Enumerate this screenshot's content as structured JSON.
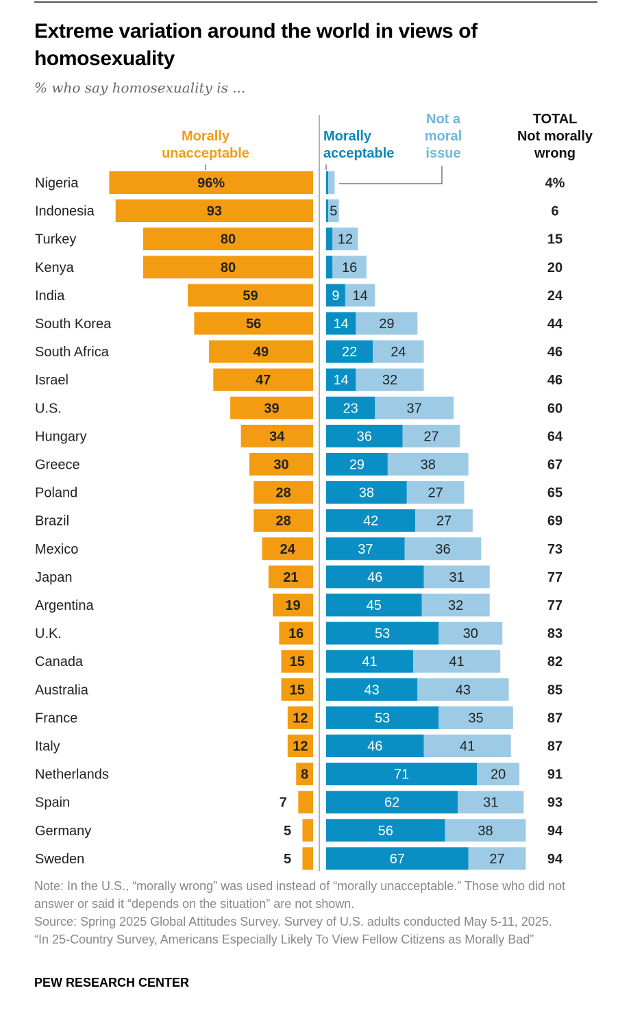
{
  "chart_data": {
    "type": "bar",
    "title": "Extreme variation around the world in views of homosexuality",
    "subtitle": "% who say homosexuality is ...",
    "legend": {
      "unacceptable": "Morally unacceptable",
      "acceptable": "Morally acceptable",
      "not_moral": "Not a moral issue",
      "total": "TOTAL Not morally wrong"
    },
    "legend_placement": "top",
    "colors": {
      "unacceptable": "#f39c12",
      "acceptable": "#0a8fc4",
      "not_moral": "#9dcbe6",
      "divider": "#999999"
    },
    "categories": [
      "Nigeria",
      "Indonesia",
      "Turkey",
      "Kenya",
      "India",
      "South Korea",
      "South Africa",
      "Israel",
      "U.S.",
      "Hungary",
      "Greece",
      "Poland",
      "Brazil",
      "Mexico",
      "Japan",
      "Argentina",
      "U.K.",
      "Canada",
      "Australia",
      "France",
      "Italy",
      "Netherlands",
      "Spain",
      "Germany",
      "Sweden"
    ],
    "series": [
      {
        "name": "Morally unacceptable",
        "values": [
          96,
          93,
          80,
          80,
          59,
          56,
          49,
          47,
          39,
          34,
          30,
          28,
          28,
          24,
          21,
          19,
          16,
          15,
          15,
          12,
          12,
          8,
          7,
          5,
          5
        ]
      },
      {
        "name": "Morally acceptable",
        "values": [
          1,
          1,
          3,
          3,
          9,
          14,
          22,
          14,
          23,
          36,
          29,
          38,
          42,
          37,
          46,
          45,
          53,
          41,
          43,
          53,
          46,
          71,
          62,
          56,
          67
        ]
      },
      {
        "name": "Not a moral issue",
        "values": [
          3,
          5,
          12,
          16,
          14,
          29,
          24,
          32,
          37,
          27,
          38,
          27,
          27,
          36,
          31,
          32,
          30,
          41,
          43,
          35,
          41,
          20,
          31,
          38,
          27
        ]
      },
      {
        "name": "TOTAL Not morally wrong",
        "values": [
          4,
          6,
          15,
          20,
          24,
          44,
          46,
          46,
          60,
          64,
          67,
          65,
          69,
          73,
          77,
          77,
          83,
          82,
          85,
          87,
          87,
          91,
          93,
          94,
          94
        ]
      }
    ],
    "acceptable_labels": [
      "",
      "",
      "",
      "",
      "9",
      "14",
      "22",
      "14",
      "23",
      "36",
      "29",
      "38",
      "42",
      "37",
      "46",
      "45",
      "53",
      "41",
      "43",
      "53",
      "46",
      "71",
      "62",
      "56",
      "67"
    ],
    "not_moral_labels": [
      "",
      "5",
      "12",
      "16",
      "14",
      "29",
      "24",
      "32",
      "37",
      "27",
      "38",
      "27",
      "27",
      "36",
      "31",
      "32",
      "30",
      "41",
      "43",
      "35",
      "41",
      "20",
      "31",
      "38",
      "27"
    ],
    "unacceptable_labels": [
      "96%",
      "93",
      "80",
      "80",
      "59",
      "56",
      "49",
      "47",
      "39",
      "34",
      "30",
      "28",
      "28",
      "24",
      "21",
      "19",
      "16",
      "15",
      "15",
      "12",
      "12",
      "8",
      "7",
      "5",
      "5"
    ],
    "total_labels": [
      "4%",
      "6",
      "15",
      "20",
      "24",
      "44",
      "46",
      "46",
      "60",
      "64",
      "67",
      "65",
      "69",
      "73",
      "77",
      "77",
      "83",
      "82",
      "85",
      "87",
      "87",
      "91",
      "93",
      "94",
      "94"
    ],
    "xlabel": "",
    "ylabel": "",
    "grid": false
  },
  "notes": {
    "note": "Note: In the U.S., “morally wrong” was used instead of “morally unacceptable.” Those who did not answer or said it “depends on the situation” are not shown.",
    "source": "Source: Spring 2025 Global Attitudes Survey. Survey of U.S. adults conducted May 5-11, 2025.",
    "report": "“In 25-Country Survey, Americans Especially Likely To View Fellow Citizens as Morally Bad”",
    "brand": "PEW RESEARCH CENTER"
  }
}
